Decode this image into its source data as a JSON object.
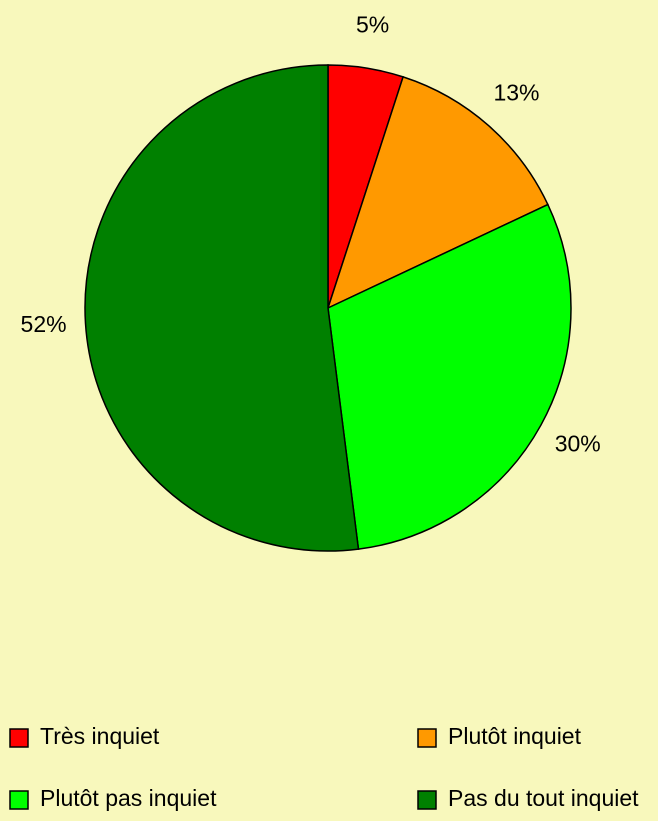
{
  "chart_data": {
    "type": "pie",
    "categories": [
      "Très inquiet",
      "Plutôt inquiet",
      "Plutôt pas inquiet",
      "Pas du tout inquiet"
    ],
    "values": [
      5,
      13,
      30,
      52
    ],
    "value_labels": [
      "5%",
      "13%",
      "30%",
      "52%"
    ],
    "colors": [
      "#ff0000",
      "#ff9900",
      "#00ff00",
      "#008000"
    ],
    "legend": "bottom"
  }
}
